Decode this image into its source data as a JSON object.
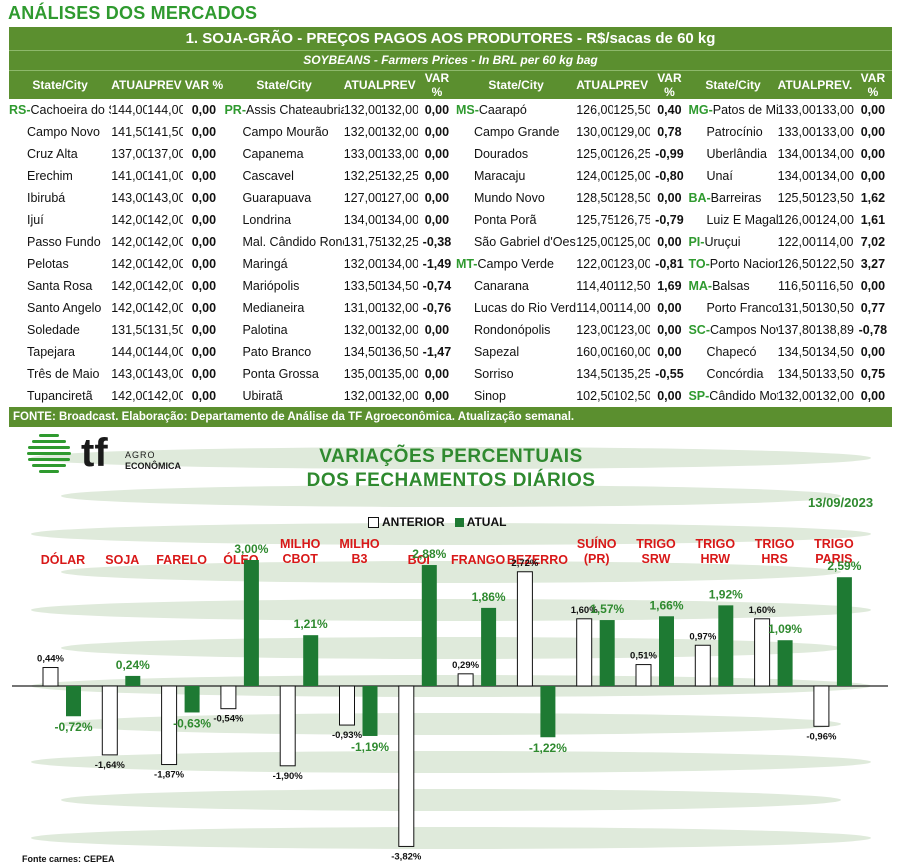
{
  "page_title": "ANÁLISES DOS MERCADOS",
  "table": {
    "title": "1. SOJA-GRÃO - PREÇOS PAGOS AOS PRODUTORES - R$/sacas de 60 kg",
    "subtitle": "SOYBEANS - Farmers Prices - In BRL per 60 kg bag",
    "blocks": [
      {
        "headers": [
          "State/City",
          "ATUAL",
          "PREV",
          "VAR %"
        ],
        "rows": [
          [
            "RS-",
            "Cachoeira do Sul",
            "144,00",
            "144,00",
            "0,00"
          ],
          [
            "",
            "Campo Novo",
            "141,50",
            "141,50",
            "0,00"
          ],
          [
            "",
            "Cruz Alta",
            "137,00",
            "137,00",
            "0,00"
          ],
          [
            "",
            "Erechim",
            "141,00",
            "141,00",
            "0,00"
          ],
          [
            "",
            "Ibirubá",
            "143,00",
            "143,00",
            "0,00"
          ],
          [
            "",
            "Ijuí",
            "142,00",
            "142,00",
            "0,00"
          ],
          [
            "",
            "Passo Fundo",
            "142,00",
            "142,00",
            "0,00"
          ],
          [
            "",
            "Pelotas",
            "142,00",
            "142,00",
            "0,00"
          ],
          [
            "",
            "Santa Rosa",
            "142,00",
            "142,00",
            "0,00"
          ],
          [
            "",
            "Santo Angelo",
            "142,00",
            "142,00",
            "0,00"
          ],
          [
            "",
            "Soledade",
            "131,50",
            "131,50",
            "0,00"
          ],
          [
            "",
            "Tapejara",
            "144,00",
            "144,00",
            "0,00"
          ],
          [
            "",
            "Três de Maio",
            "143,00",
            "143,00",
            "0,00"
          ],
          [
            "",
            "Tupanciretã",
            "142,00",
            "142,00",
            "0,00"
          ]
        ]
      },
      {
        "headers": [
          "State/City",
          "ATUAL",
          "PREV",
          "VAR %"
        ],
        "rows": [
          [
            "PR-",
            "Assis Chateaubriand",
            "132,00",
            "132,00",
            "0,00"
          ],
          [
            "",
            "Campo Mourão",
            "132,00",
            "132,00",
            "0,00"
          ],
          [
            "",
            "Capanema",
            "133,00",
            "133,00",
            "0,00"
          ],
          [
            "",
            "Cascavel",
            "132,25",
            "132,25",
            "0,00"
          ],
          [
            "",
            "Guarapuava",
            "127,00",
            "127,00",
            "0,00"
          ],
          [
            "",
            "Londrina",
            "134,00",
            "134,00",
            "0,00"
          ],
          [
            "",
            "Mal. Cândido Rondon",
            "131,75",
            "132,25",
            "-0,38"
          ],
          [
            "",
            "Maringá",
            "132,00",
            "134,00",
            "-1,49"
          ],
          [
            "",
            "Mariópolis",
            "133,50",
            "134,50",
            "-0,74"
          ],
          [
            "",
            "Medianeira",
            "131,00",
            "132,00",
            "-0,76"
          ],
          [
            "",
            "Palotina",
            "132,00",
            "132,00",
            "0,00"
          ],
          [
            "",
            "Pato Branco",
            "134,50",
            "136,50",
            "-1,47"
          ],
          [
            "",
            "Ponta Grossa",
            "135,00",
            "135,00",
            "0,00"
          ],
          [
            "",
            "Ubiratã",
            "132,00",
            "132,00",
            "0,00"
          ]
        ]
      },
      {
        "headers": [
          "State/City",
          "ATUAL",
          "PREV",
          "VAR %"
        ],
        "rows": [
          [
            "MS-",
            "Caarapó",
            "126,00",
            "125,50",
            "0,40"
          ],
          [
            "",
            "Campo Grande",
            "130,00",
            "129,00",
            "0,78"
          ],
          [
            "",
            "Dourados",
            "125,00",
            "126,25",
            "-0,99"
          ],
          [
            "",
            "Maracaju",
            "124,00",
            "125,00",
            "-0,80"
          ],
          [
            "",
            "Mundo Novo",
            "128,50",
            "128,50",
            "0,00"
          ],
          [
            "",
            "Ponta Porã",
            "125,75",
            "126,75",
            "-0,79"
          ],
          [
            "",
            "São Gabriel d'Oeste",
            "125,00",
            "125,00",
            "0,00"
          ],
          [
            "MT-",
            "Campo Verde",
            "122,00",
            "123,00",
            "-0,81"
          ],
          [
            "",
            "Canarana",
            "114,40",
            "112,50",
            "1,69"
          ],
          [
            "",
            "Lucas do Rio Verde",
            "114,00",
            "114,00",
            "0,00"
          ],
          [
            "",
            "Rondonópolis",
            "123,00",
            "123,00",
            "0,00"
          ],
          [
            "",
            "Sapezal",
            "160,00",
            "160,00",
            "0,00"
          ],
          [
            "",
            "Sorriso",
            "134,50",
            "135,25",
            "-0,55"
          ],
          [
            "",
            "Sinop",
            "102,50",
            "102,50",
            "0,00"
          ]
        ]
      },
      {
        "headers": [
          "State/City",
          "ATUAL",
          "PREV.",
          "VAR %"
        ],
        "rows": [
          [
            "MG-",
            "Patos de Minas",
            "133,00",
            "133,00",
            "0,00"
          ],
          [
            "",
            "Patrocínio",
            "133,00",
            "133,00",
            "0,00"
          ],
          [
            "",
            "Uberlândia",
            "134,00",
            "134,00",
            "0,00"
          ],
          [
            "",
            "Unaí",
            "134,00",
            "134,00",
            "0,00"
          ],
          [
            "BA-",
            "Barreiras",
            "125,50",
            "123,50",
            "1,62"
          ],
          [
            "",
            "Luiz E Magalhães",
            "126,00",
            "124,00",
            "1,61"
          ],
          [
            "PI-",
            "Uruçui",
            "122,00",
            "114,00",
            "7,02"
          ],
          [
            "TO-",
            "Porto Nacional",
            "126,50",
            "122,50",
            "3,27"
          ],
          [
            "MA-",
            "Balsas",
            "116,50",
            "116,50",
            "0,00"
          ],
          [
            "",
            "Porto Franco",
            "131,50",
            "130,50",
            "0,77"
          ],
          [
            "SC-",
            "Campos Novos",
            "137,80",
            "138,89",
            "-0,78"
          ],
          [
            "",
            "Chapecó",
            "134,50",
            "134,50",
            "0,00"
          ],
          [
            "",
            "Concórdia",
            "134,50",
            "133,50",
            "0,75"
          ],
          [
            "SP-",
            "Cândido Mota",
            "132,00",
            "132,00",
            "0,00"
          ]
        ]
      }
    ],
    "footer": "FONTE: Broadcast. Elaboração: Departamento de Análise da TF Agroeconômica. Atualização semanal."
  },
  "logo": {
    "mark": "tf",
    "line1": "AGRO",
    "line2": "ECONÔMICA"
  },
  "chart_data": {
    "type": "bar",
    "title_line1": "VARIAÇÕES PERCENTUAIS",
    "title_line2": "DOS FECHAMENTOS DIÁRIOS",
    "date": "13/09/2023",
    "categories": [
      [
        "DÓLAR"
      ],
      [
        "SOJA"
      ],
      [
        "FARELO"
      ],
      [
        "ÓLEO"
      ],
      [
        "MILHO",
        "CBOT"
      ],
      [
        "MILHO",
        "B3"
      ],
      [
        "BOI"
      ],
      [
        "FRANGO"
      ],
      [
        "BEZERRO"
      ],
      [
        "SUÍNO",
        "(PR)"
      ],
      [
        "TRIGO",
        "SRW"
      ],
      [
        "TRIGO",
        "HRW"
      ],
      [
        "TRIGO",
        "HRS"
      ],
      [
        "TRIGO",
        "PARIS"
      ]
    ],
    "series": [
      {
        "name": "ANTERIOR",
        "values": [
          0.44,
          -1.64,
          -1.87,
          -0.54,
          -1.9,
          -0.93,
          -3.82,
          0.29,
          2.72,
          1.6,
          0.51,
          0.97,
          1.6,
          -0.96
        ]
      },
      {
        "name": "ATUAL",
        "values": [
          -0.72,
          0.24,
          -0.63,
          3.0,
          1.21,
          -1.19,
          2.88,
          1.86,
          -1.22,
          1.57,
          1.66,
          1.92,
          1.09,
          2.59
        ]
      }
    ],
    "labels": {
      "anterior": [
        "0,44%",
        "-1,64%",
        "-1,87%",
        "-0,54%",
        "-1,90%",
        "-0,93%",
        "-3,82%",
        "0,29%",
        "2,72%",
        "1,60%",
        "0,51%",
        "0,97%",
        "1,60%",
        "-0,96%"
      ],
      "atual": [
        "-0,72%",
        "0,24%",
        "-0,63%",
        "3,00%",
        "1,21%",
        "-1,19%",
        "2,88%",
        "1,86%",
        "-1,22%",
        "1,57%",
        "1,66%",
        "1,92%",
        "1,09%",
        "2,59%"
      ]
    },
    "legend_position": "top-center",
    "colors": {
      "atual": "#1e7a33",
      "anterior": "#ffffff",
      "category_label": "#d81818",
      "atual_label": "#2f8a2f",
      "stripe": "#dfeadb"
    },
    "source": "Fonte carnes: CEPEA"
  }
}
